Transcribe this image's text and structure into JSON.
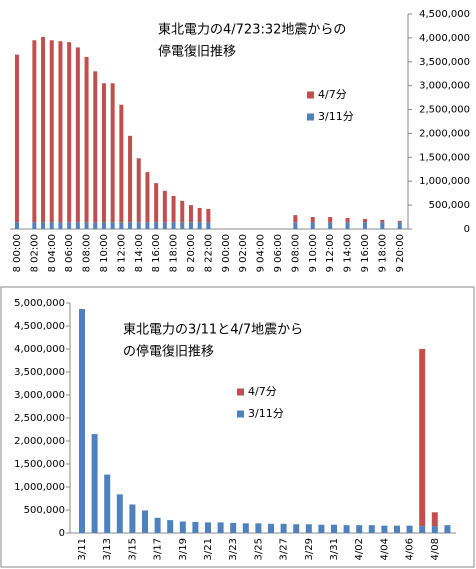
{
  "chart_data": [
    {
      "type": "bar",
      "stacked": true,
      "y_axis_side": "right",
      "title": [
        "東北電力の4/723:32地震からの",
        "停電復旧推移"
      ],
      "categories": [
        "8 00:00",
        null,
        "8 02:00",
        null,
        "8 04:00",
        null,
        "8 06:00",
        null,
        "8 08:00",
        null,
        "8 10:00",
        null,
        "8 12:00",
        null,
        "8 14:00",
        null,
        "8 16:00",
        null,
        "8 18:00",
        null,
        "8 20:00",
        null,
        "8 22:00",
        null,
        "9 00:00",
        null,
        "9 02:00",
        null,
        "9 04:00",
        null,
        "9 06:00",
        null,
        "9 08:00",
        null,
        "9 10:00",
        null,
        "9 12:00",
        null,
        "9 14:00",
        null,
        "9 16:00",
        null,
        "9 18:00",
        null,
        "9 20:00"
      ],
      "series": [
        {
          "name": "3/11分",
          "color": "#4f81bd",
          "values": [
            140000,
            0,
            140000,
            140000,
            140000,
            140000,
            140000,
            140000,
            140000,
            140000,
            140000,
            140000,
            140000,
            140000,
            140000,
            140000,
            140000,
            140000,
            140000,
            140000,
            140000,
            140000,
            140000,
            0,
            0,
            0,
            0,
            0,
            0,
            0,
            0,
            0,
            140000,
            0,
            140000,
            0,
            140000,
            0,
            140000,
            0,
            140000,
            0,
            140000,
            0,
            140000
          ]
        },
        {
          "name": "4/7分",
          "color": "#c0504d",
          "values": [
            3510000,
            0,
            3810000,
            3880000,
            3810000,
            3790000,
            3770000,
            3660000,
            3460000,
            3160000,
            2910000,
            2910000,
            2460000,
            1810000,
            1340000,
            1050000,
            820000,
            660000,
            550000,
            450000,
            360000,
            300000,
            280000,
            0,
            0,
            0,
            0,
            0,
            0,
            0,
            0,
            0,
            150000,
            0,
            110000,
            0,
            110000,
            0,
            90000,
            0,
            70000,
            0,
            50000,
            0,
            30000
          ]
        }
      ],
      "ylim": [
        0,
        4500000
      ],
      "yticks": [
        0,
        {
          "value": 500000,
          "label": "500,000"
        },
        {
          "value": 1000000,
          "label": "1,000,000"
        },
        {
          "value": 1500000,
          "label": "1,500,000"
        },
        {
          "value": 2000000,
          "label": "2,000,000"
        },
        {
          "value": 2500000,
          "label": "2,500,000"
        },
        {
          "value": 3000000,
          "label": "3,000,000"
        },
        {
          "value": 3500000,
          "label": "3,500,000"
        },
        {
          "value": 4000000,
          "label": "4,000,000"
        },
        {
          "value": 4500000,
          "label": "4,500,000"
        }
      ]
    },
    {
      "type": "bar",
      "stacked": true,
      "y_axis_side": "left",
      "title": [
        "東北電力の3/11と4/7地震から",
        "の停電復旧推移"
      ],
      "categories": [
        "3/11",
        null,
        "3/13",
        null,
        "3/15",
        null,
        "3/17",
        null,
        "3/19",
        null,
        "3/21",
        null,
        "3/23",
        null,
        "3/25",
        null,
        "3/27",
        null,
        "3/29",
        null,
        "3/31",
        null,
        "4/02",
        null,
        "4/04",
        null,
        "4/06",
        null,
        "4/08",
        null
      ],
      "series": [
        {
          "name": "3/11分",
          "color": "#4f81bd",
          "values": [
            4870000,
            2150000,
            1270000,
            840000,
            620000,
            490000,
            330000,
            280000,
            250000,
            240000,
            230000,
            230000,
            220000,
            210000,
            210000,
            200000,
            200000,
            190000,
            190000,
            180000,
            180000,
            170000,
            170000,
            170000,
            160000,
            160000,
            160000,
            150000,
            150000,
            170000
          ]
        },
        {
          "name": "4/7分",
          "color": "#c0504d",
          "values": [
            0,
            0,
            0,
            0,
            0,
            0,
            0,
            0,
            0,
            0,
            0,
            0,
            0,
            0,
            0,
            0,
            0,
            0,
            0,
            0,
            0,
            0,
            0,
            0,
            0,
            0,
            0,
            3850000,
            300000,
            0
          ]
        }
      ],
      "ylim": [
        0,
        5000000
      ],
      "yticks": [
        0,
        {
          "value": 500000,
          "label": "500,000"
        },
        {
          "value": 1000000,
          "label": "1,000,000"
        },
        {
          "value": 1500000,
          "label": "1,500,000"
        },
        {
          "value": 2000000,
          "label": "2,000,000"
        },
        {
          "value": 2500000,
          "label": "2,500,000"
        },
        {
          "value": 3000000,
          "label": "3,000,000"
        },
        {
          "value": 3500000,
          "label": "3,500,000"
        },
        {
          "value": 4000000,
          "label": "4,000,000"
        },
        {
          "value": 4500000,
          "label": "4,500,000"
        },
        {
          "value": 5000000,
          "label": "5,000,000"
        }
      ]
    }
  ]
}
